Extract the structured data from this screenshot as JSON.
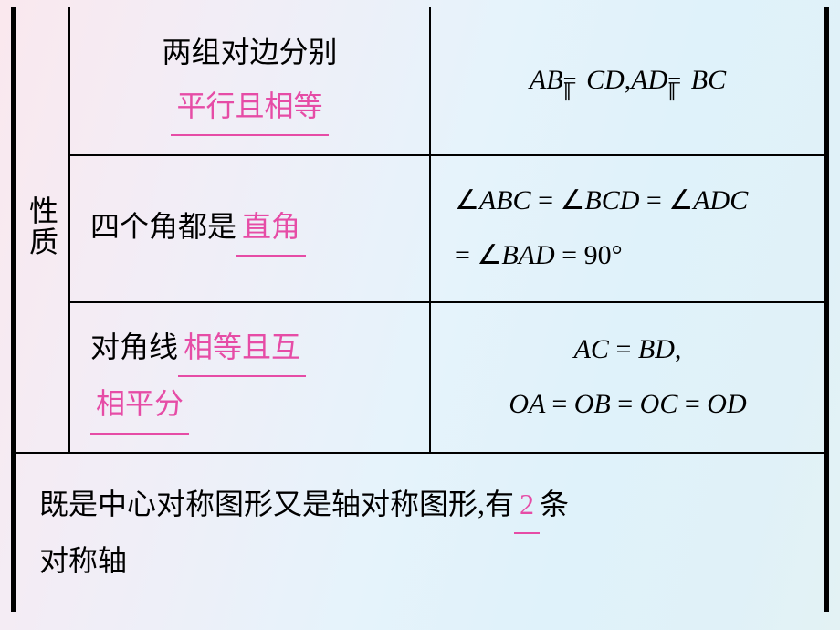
{
  "sideLabel": "性质",
  "rows": {
    "r1": {
      "left_prefix": "两组对边分别",
      "left_fill": "平行且相等",
      "right_math": "AB<span class=\"parcong\"><span class=\"bars\">∥</span><span class=\"eq\">=</span></span>CD<span class=\"up\">,</span>AD<span class=\"parcong\"><span class=\"bars\">∥</span><span class=\"eq\">=</span></span>BC"
    },
    "r2": {
      "left_prefix": "四个角都是",
      "left_fill": "直角",
      "right_line1": "<span class=\"up\">∠</span>ABC <span class=\"up\">=</span> <span class=\"up\">∠</span>BCD <span class=\"up\">=</span> <span class=\"up\">∠</span>ADC",
      "right_line2": "<span class=\"up\">=</span> <span class=\"up\">∠</span>BAD <span class=\"up\">= 90°</span>"
    },
    "r3": {
      "left_prefix": "对角线",
      "left_fill1": "相等且互",
      "left_fill2": "相平分",
      "right_line1": "AC <span class=\"up\">=</span> BD<span class=\"up\">,</span>",
      "right_line2": "OA <span class=\"up\">=</span> OB <span class=\"up\">=</span> OC <span class=\"up\">=</span> OD"
    },
    "r4": {
      "text_prefix": "既是中心对称图形又是轴对称图形,有",
      "fill": "2",
      "text_suffix_1": "条",
      "text_suffix_2": "对称轴"
    }
  },
  "colors": {
    "fill_text": "#e64ca6",
    "border": "#000000"
  },
  "font_sizes": {
    "body": 32,
    "math": 30
  }
}
